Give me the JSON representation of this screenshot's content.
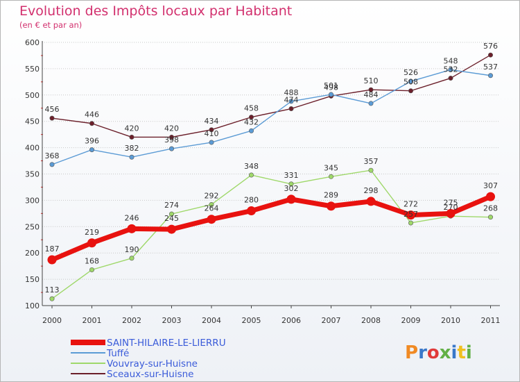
{
  "header": {
    "title": "Evolution des Impôts locaux par Habitant",
    "subtitle": "(en € et par an)"
  },
  "logo": {
    "text": "Proxiti",
    "colors": [
      "#f08a24",
      "#3a78c9",
      "#e03a3a",
      "#62b046",
      "#3a78c9",
      "#f0c020",
      "#62b046"
    ]
  },
  "chart_data": {
    "type": "line",
    "title": "Evolution des Impôts locaux par Habitant",
    "subtitle": "(en € et par an)",
    "xlabel": "",
    "ylabel": "",
    "x": [
      "2000",
      "2001",
      "2002",
      "2003",
      "2004",
      "2005",
      "2006",
      "2007",
      "2008",
      "2009",
      "2010",
      "2011"
    ],
    "ylim": [
      100,
      600
    ],
    "yticks": [
      100,
      150,
      200,
      250,
      300,
      350,
      400,
      450,
      500,
      550,
      600
    ],
    "grid": "horizontal",
    "legend_position": "bottom-left",
    "series": [
      {
        "name": "SAINT-HILAIRE-LE-LIERRU",
        "color": "#e8120f",
        "values": [
          187,
          219,
          246,
          245,
          264,
          280,
          302,
          289,
          298,
          272,
          275,
          307
        ]
      },
      {
        "name": "Tuffé",
        "color": "#5b9bd5",
        "values": [
          368,
          396,
          382,
          398,
          410,
          432,
          488,
          501,
          484,
          526,
          548,
          537
        ]
      },
      {
        "name": "Vouvray-sur-Huisne",
        "color": "#9fd86a",
        "values": [
          113,
          168,
          190,
          274,
          292,
          348,
          331,
          345,
          357,
          257,
          270,
          268
        ]
      },
      {
        "name": "Sceaux-sur-Huisne",
        "color": "#6b1f2a",
        "values": [
          456,
          446,
          420,
          420,
          434,
          458,
          474,
          498,
          510,
          508,
          532,
          576
        ]
      }
    ]
  }
}
